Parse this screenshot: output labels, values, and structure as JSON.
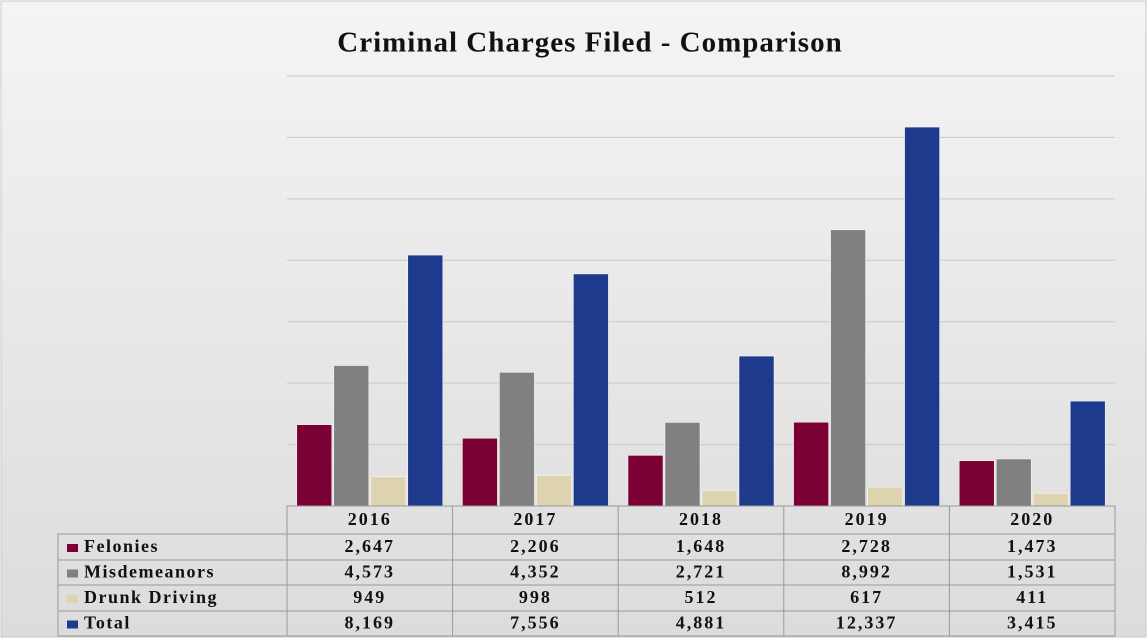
{
  "chart_data": {
    "type": "bar",
    "title": "Criminal Charges Filed - Comparison",
    "categories": [
      "2016",
      "2017",
      "2018",
      "2019",
      "2020"
    ],
    "series": [
      {
        "name": "Felonies",
        "color": "#7b0033",
        "values": [
          2647,
          2206,
          1648,
          2728,
          1473
        ],
        "value_labels": [
          "2,647",
          "2,206",
          "1,648",
          "2,728",
          "1,473"
        ]
      },
      {
        "name": "Misdemeanors",
        "color": "#808080",
        "values": [
          4573,
          4352,
          2721,
          8992,
          1531
        ],
        "value_labels": [
          "4,573",
          "4,352",
          "2,721",
          "8,992",
          "1,531"
        ]
      },
      {
        "name": "Drunk Driving",
        "color": "#ddd3ae",
        "values": [
          949,
          998,
          512,
          617,
          411
        ],
        "value_labels": [
          "949",
          "998",
          "512",
          "617",
          "411"
        ]
      },
      {
        "name": "Total",
        "color": "#1d3a8c",
        "values": [
          8169,
          7556,
          4881,
          12337,
          3415
        ],
        "value_labels": [
          "8,169",
          "7,556",
          "4,881",
          "12,337",
          "3,415"
        ]
      }
    ],
    "ylim": [
      0,
      14000
    ],
    "yticks": [
      0,
      2000,
      4000,
      6000,
      8000,
      10000,
      12000,
      14000
    ],
    "grid": true
  }
}
